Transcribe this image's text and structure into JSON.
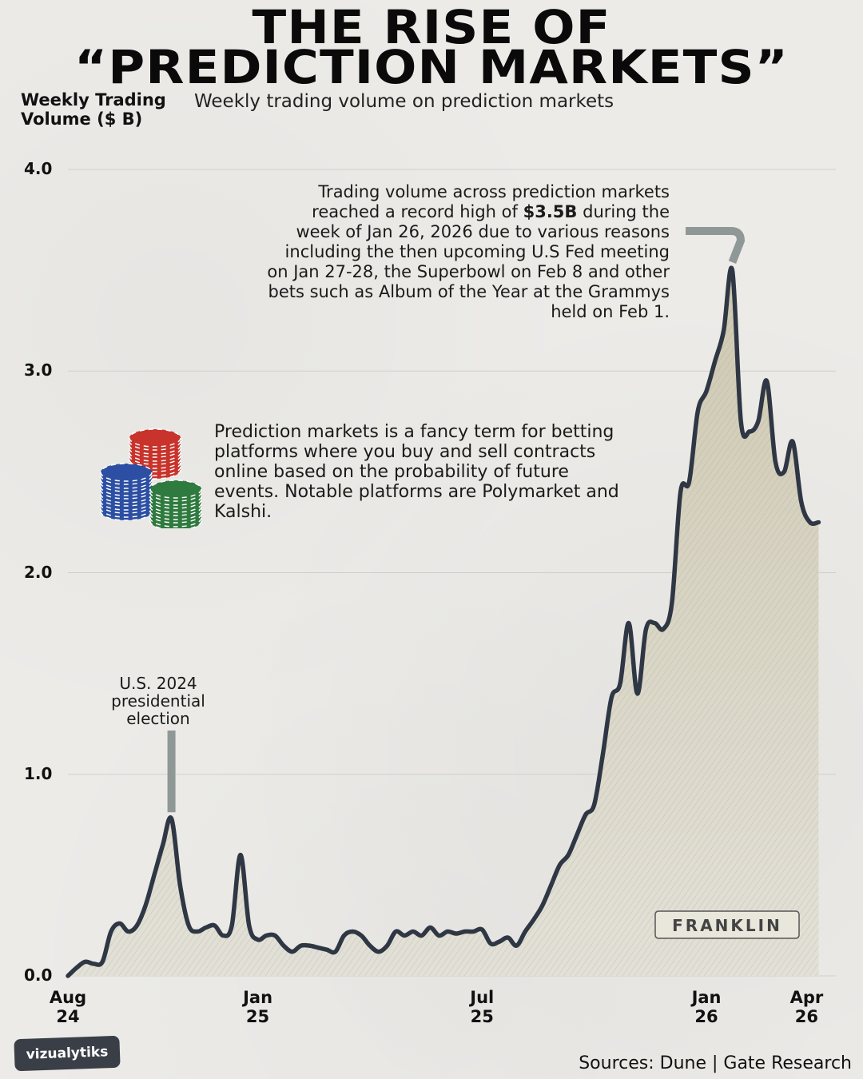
{
  "title": {
    "line1": "THE RISE OF",
    "line2": "“PREDICTION MARKETS”"
  },
  "subtitle": "Weekly trading volume on prediction markets",
  "annotations": {
    "record_prefix": "Trading volume across prediction markets reached a record high of",
    "record_value": "$3.5B",
    "record_suffix": "during the week of Jan 26, 2026 due to various reasons including the then upcoming U.S Fed meeting on Jan 27-28, the Superbowl on Feb 8 and other bets such as Album of the Year at the Grammys held on Feb 1.",
    "definition": "Prediction markets is a fancy term for betting platforms where you buy and sell contracts online based on the probability of future events. Notable platforms are Polymarket and Kalshi.",
    "election": "U.S. 2024 presidential election",
    "banknote_label": "FRANKLIN"
  },
  "source": "Sources: Dune | Gate Research",
  "brand": "vizualytiks",
  "colors": {
    "line": "#2f3744",
    "grid": "#cfcfcf",
    "callout": "#8f9896",
    "fill": "#d7d4c6",
    "chip_red": "#c8332b",
    "chip_blue": "#2c4fa3",
    "chip_green": "#2f7a3f"
  },
  "chart_data": {
    "type": "area",
    "ylabel": "Weekly Trading Volume ($ B)",
    "xlabel": "",
    "ylim": [
      0,
      4
    ],
    "yticks": [
      0.0,
      1.0,
      2.0,
      3.0,
      4.0
    ],
    "ytick_labels": [
      "0.0",
      "1.0",
      "2.0",
      "3.0",
      "4.0"
    ],
    "xlim": [
      "2024-08-05",
      "2026-04-20"
    ],
    "xticks": [
      {
        "date": "2024-08-05",
        "label": [
          "Aug",
          "24"
        ]
      },
      {
        "date": "2025-01-06",
        "label": [
          "Jan",
          "25"
        ]
      },
      {
        "date": "2025-07-07",
        "label": [
          "Jul",
          "25"
        ]
      },
      {
        "date": "2026-01-05",
        "label": [
          "Jan",
          "26"
        ]
      },
      {
        "date": "2026-04-06",
        "label": [
          "Apr",
          "26"
        ]
      }
    ],
    "grid": true,
    "series": [
      {
        "values": [
          [
            "2024-08-05",
            0.0
          ],
          [
            "2024-08-12",
            0.04
          ],
          [
            "2024-08-19",
            0.07
          ],
          [
            "2024-08-26",
            0.06
          ],
          [
            "2024-09-02",
            0.07
          ],
          [
            "2024-09-09",
            0.22
          ],
          [
            "2024-09-16",
            0.26
          ],
          [
            "2024-09-23",
            0.22
          ],
          [
            "2024-09-30",
            0.25
          ],
          [
            "2024-10-07",
            0.35
          ],
          [
            "2024-10-14",
            0.5
          ],
          [
            "2024-10-21",
            0.65
          ],
          [
            "2024-10-28",
            0.78
          ],
          [
            "2024-11-04",
            0.45
          ],
          [
            "2024-11-11",
            0.25
          ],
          [
            "2024-11-18",
            0.22
          ],
          [
            "2024-11-25",
            0.24
          ],
          [
            "2024-12-02",
            0.25
          ],
          [
            "2024-12-09",
            0.2
          ],
          [
            "2024-12-16",
            0.25
          ],
          [
            "2024-12-23",
            0.6
          ],
          [
            "2024-12-30",
            0.25
          ],
          [
            "2025-01-06",
            0.18
          ],
          [
            "2025-01-13",
            0.2
          ],
          [
            "2025-01-20",
            0.2
          ],
          [
            "2025-01-27",
            0.15
          ],
          [
            "2025-02-03",
            0.12
          ],
          [
            "2025-02-10",
            0.15
          ],
          [
            "2025-02-17",
            0.15
          ],
          [
            "2025-02-24",
            0.14
          ],
          [
            "2025-03-03",
            0.13
          ],
          [
            "2025-03-10",
            0.12
          ],
          [
            "2025-03-17",
            0.2
          ],
          [
            "2025-03-24",
            0.22
          ],
          [
            "2025-03-31",
            0.2
          ],
          [
            "2025-04-07",
            0.15
          ],
          [
            "2025-04-14",
            0.12
          ],
          [
            "2025-04-21",
            0.15
          ],
          [
            "2025-04-28",
            0.22
          ],
          [
            "2025-05-05",
            0.2
          ],
          [
            "2025-05-12",
            0.22
          ],
          [
            "2025-05-19",
            0.2
          ],
          [
            "2025-05-26",
            0.24
          ],
          [
            "2025-06-02",
            0.2
          ],
          [
            "2025-06-09",
            0.22
          ],
          [
            "2025-06-16",
            0.21
          ],
          [
            "2025-06-23",
            0.22
          ],
          [
            "2025-06-30",
            0.22
          ],
          [
            "2025-07-07",
            0.23
          ],
          [
            "2025-07-14",
            0.16
          ],
          [
            "2025-07-21",
            0.17
          ],
          [
            "2025-07-28",
            0.19
          ],
          [
            "2025-08-04",
            0.15
          ],
          [
            "2025-08-11",
            0.22
          ],
          [
            "2025-08-18",
            0.28
          ],
          [
            "2025-08-25",
            0.35
          ],
          [
            "2025-09-01",
            0.45
          ],
          [
            "2025-09-08",
            0.55
          ],
          [
            "2025-09-15",
            0.6
          ],
          [
            "2025-09-22",
            0.7
          ],
          [
            "2025-09-29",
            0.8
          ],
          [
            "2025-10-06",
            0.85
          ],
          [
            "2025-10-13",
            1.1
          ],
          [
            "2025-10-20",
            1.38
          ],
          [
            "2025-10-27",
            1.45
          ],
          [
            "2025-11-03",
            1.75
          ],
          [
            "2025-11-10",
            1.4
          ],
          [
            "2025-11-17",
            1.72
          ],
          [
            "2025-11-24",
            1.75
          ],
          [
            "2025-12-01",
            1.72
          ],
          [
            "2025-12-08",
            1.85
          ],
          [
            "2025-12-15",
            2.4
          ],
          [
            "2025-12-22",
            2.45
          ],
          [
            "2025-12-29",
            2.8
          ],
          [
            "2026-01-05",
            2.9
          ],
          [
            "2026-01-12",
            3.05
          ],
          [
            "2026-01-19",
            3.2
          ],
          [
            "2026-01-26",
            3.5
          ],
          [
            "2026-02-02",
            2.75
          ],
          [
            "2026-02-09",
            2.7
          ],
          [
            "2026-02-16",
            2.75
          ],
          [
            "2026-02-23",
            2.95
          ],
          [
            "2026-03-02",
            2.55
          ],
          [
            "2026-03-09",
            2.5
          ],
          [
            "2026-03-16",
            2.65
          ],
          [
            "2026-03-23",
            2.35
          ],
          [
            "2026-03-30",
            2.25
          ],
          [
            "2026-04-06",
            2.25
          ]
        ]
      }
    ],
    "callouts": [
      {
        "date": "2024-10-28",
        "value": 0.78,
        "text_key": "election"
      },
      {
        "date": "2026-01-26",
        "value": 3.5,
        "text_key": "record"
      }
    ]
  }
}
